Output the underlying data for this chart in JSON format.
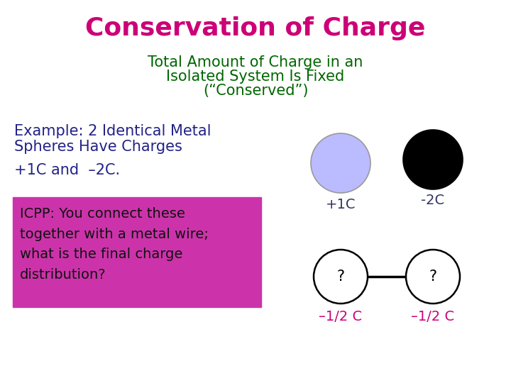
{
  "title": "Conservation of Charge",
  "title_color": "#cc0077",
  "title_fontsize": 26,
  "subtitle_line1": "Total Amount of Charge in an",
  "subtitle_line2": "Isolated System Is Fixed",
  "subtitle_line3": "(“Conserved”)",
  "subtitle_color": "#006600",
  "subtitle_fontsize": 15,
  "example_text_line1": "Example: 2 Identical Metal",
  "example_text_line2": "Spheres Have Charges",
  "example_text_line3": "+1C and  –2C.",
  "example_color": "#222288",
  "example_fontsize": 15,
  "icpp_text": "ICPP: You connect these\ntogether with a metal wire;\nwhat is the final charge\ndistribution?",
  "icpp_bg_color": "#cc33aa",
  "icpp_text_color": "#111111",
  "icpp_fontsize": 14,
  "sphere1_color": "#bbbbff",
  "sphere1_edge": "#999999",
  "sphere1_label": "+1C",
  "sphere2_color": "#000000",
  "sphere2_edge": "#000000",
  "sphere2_label": "-2C",
  "sphere3_color": "#ffffff",
  "sphere3_edge": "#000000",
  "sphere3_label": "–1/2 C",
  "sphere4_color": "#ffffff",
  "sphere4_edge": "#000000",
  "sphere4_label": "–1/2 C",
  "charge_label_color_top": "#333366",
  "charge_label_color_bottom": "#cc0077",
  "charge_label_fontsize": 14,
  "background_color": "#ffffff"
}
